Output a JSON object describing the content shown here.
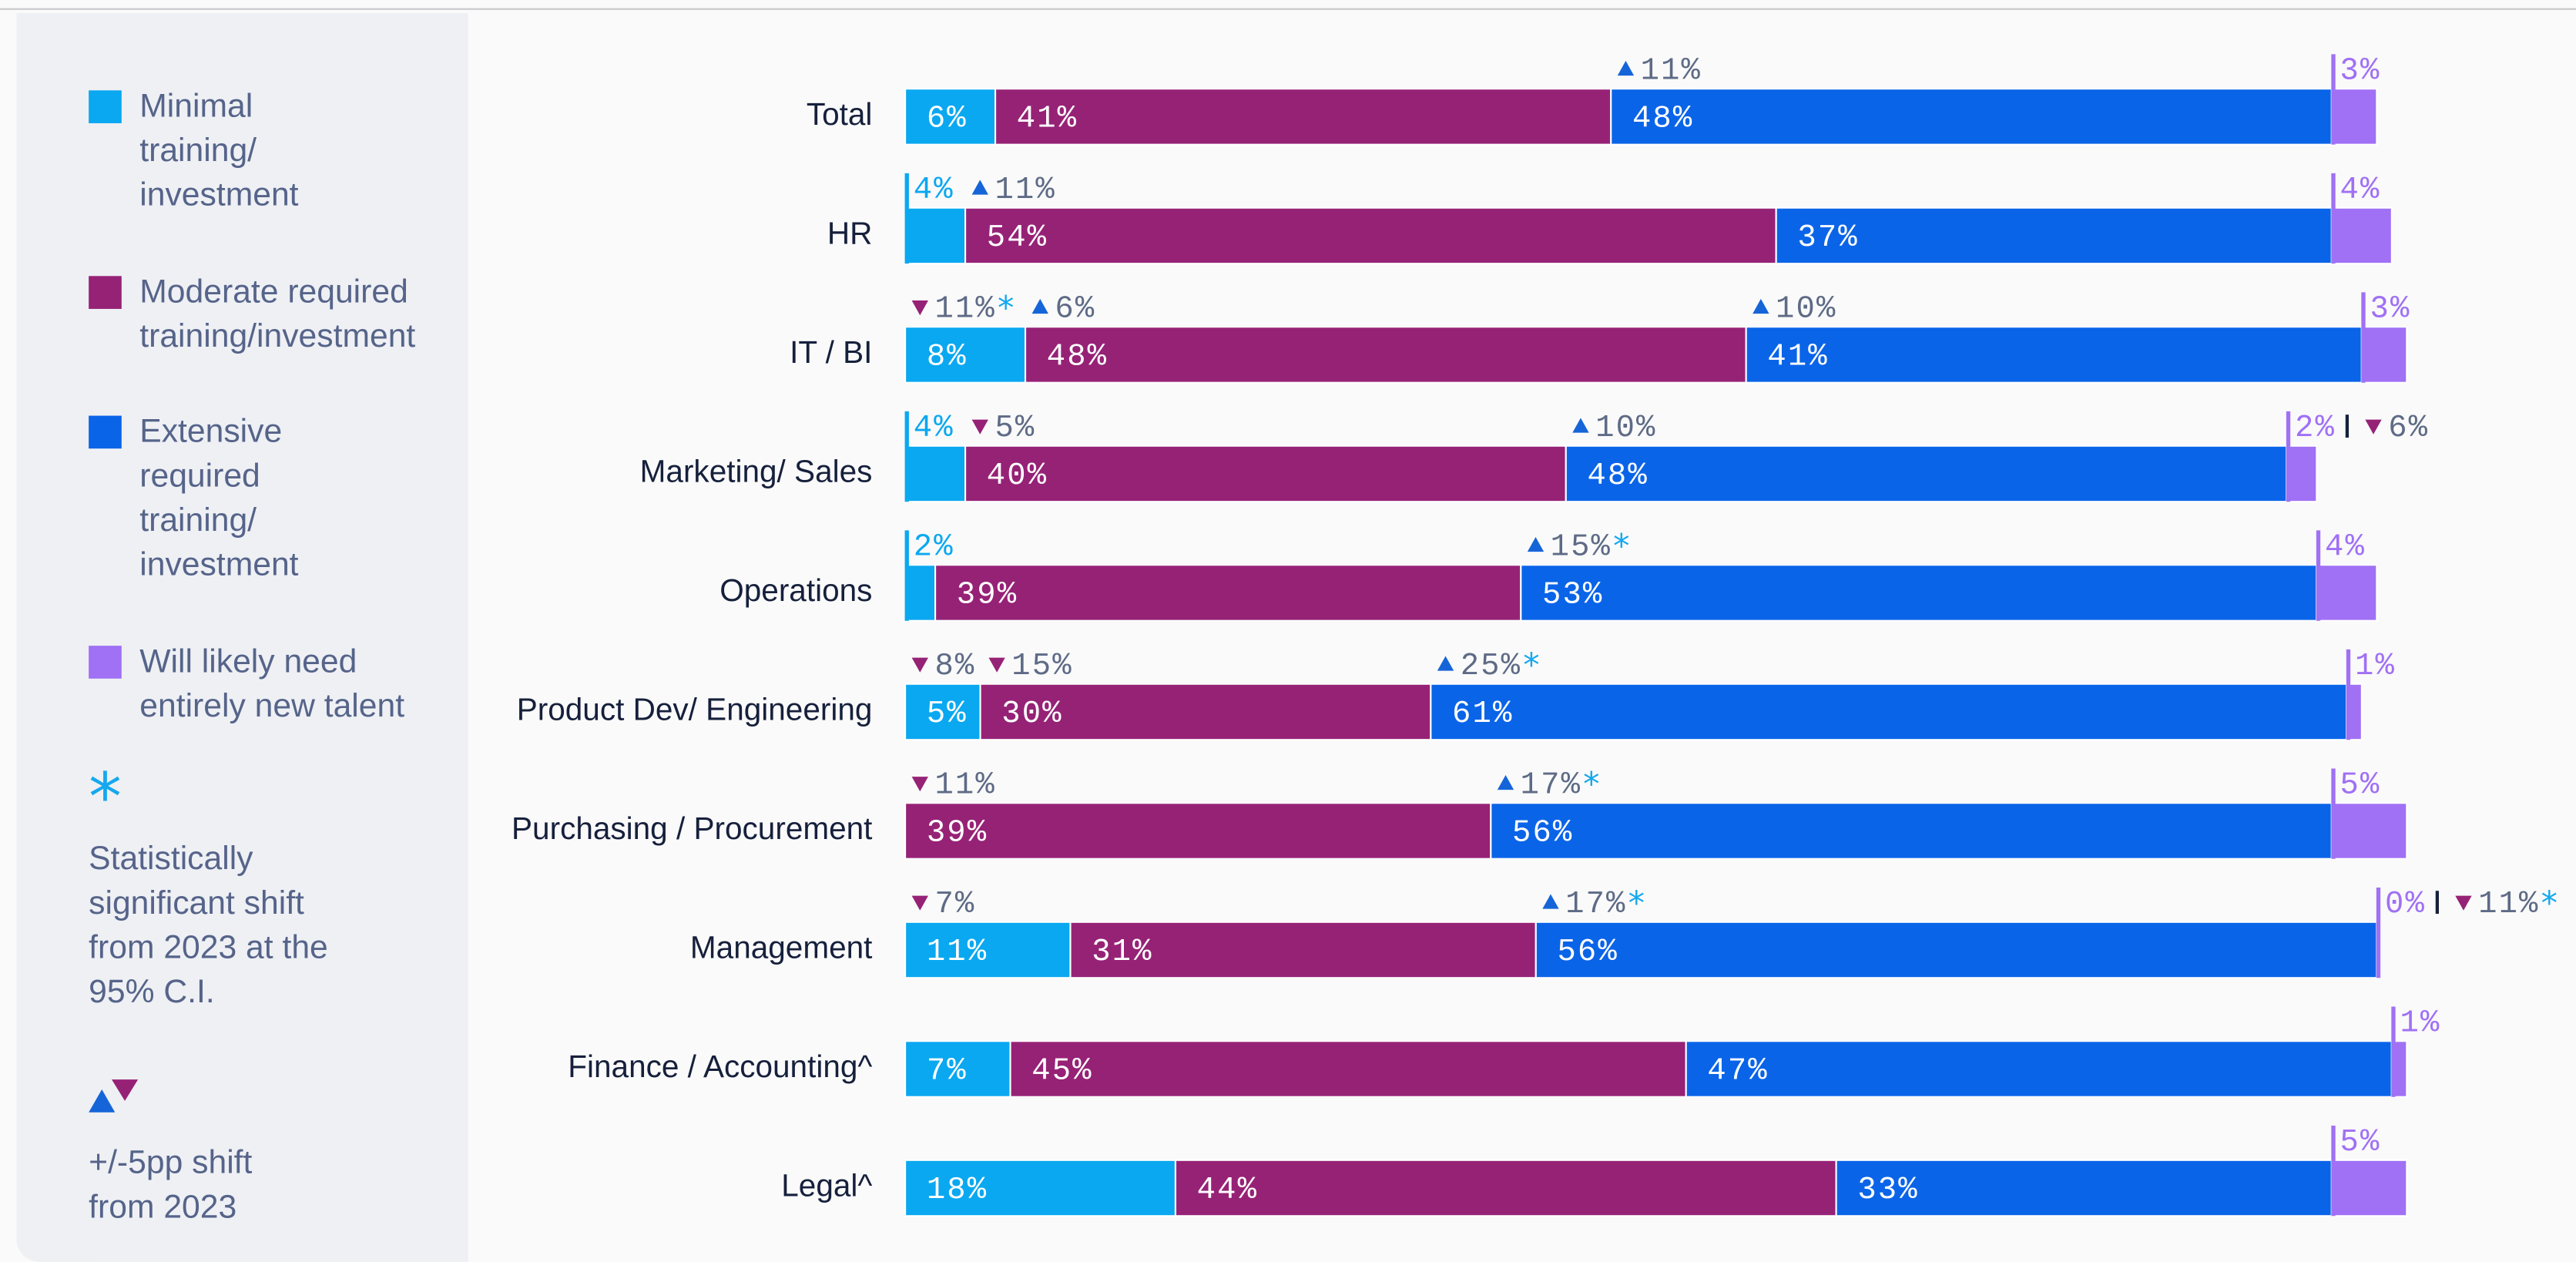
{
  "chart_data": {
    "type": "bar",
    "orientation": "horizontal",
    "stacked": true,
    "categories": [
      "Total",
      "HR",
      "IT / BI",
      "Marketing/ Sales",
      "Operations",
      "Product Dev/ Engineering",
      "Purchasing / Procurement",
      "Management",
      "Finance / Accounting^",
      "Legal^"
    ],
    "xlim": [
      0,
      100
    ],
    "shift_colors": {
      "up": "#1565d8",
      "down": "#962276"
    },
    "series": [
      {
        "name": "Minimal training/ investment",
        "color": "#0aa8f0",
        "values": [
          6,
          4,
          8,
          4,
          2,
          5,
          null,
          11,
          7,
          18
        ],
        "value_labels": [
          "6%",
          "4%",
          "8%",
          "4%",
          "2%",
          "5%",
          null,
          "11%",
          "7%",
          "18%"
        ],
        "shifts": [
          null,
          null,
          {
            "label": "11%",
            "direction": "down",
            "significant": true
          },
          null,
          null,
          {
            "label": "8%",
            "direction": "down",
            "significant": false
          },
          null,
          {
            "label": "7%",
            "direction": "down",
            "significant": false
          },
          null,
          null
        ]
      },
      {
        "name": "Moderate required training/investment",
        "color": "#962276",
        "values": [
          41,
          54,
          48,
          40,
          39,
          30,
          39,
          31,
          45,
          44
        ],
        "value_labels": [
          "41%",
          "54%",
          "48%",
          "40%",
          "39%",
          "30%",
          "39%",
          "31%",
          "45%",
          "44%"
        ],
        "shifts": [
          null,
          {
            "label": "11%",
            "direction": "up",
            "significant": false
          },
          {
            "label": "6%",
            "direction": "up",
            "significant": false
          },
          {
            "label": "5%",
            "direction": "down",
            "significant": false
          },
          null,
          {
            "label": "15%",
            "direction": "down",
            "significant": false
          },
          {
            "label": "11%",
            "direction": "down",
            "significant": false
          },
          null,
          null,
          null
        ]
      },
      {
        "name": "Extensive required training/ investment",
        "color": "#0a64e8",
        "values": [
          48,
          37,
          41,
          48,
          53,
          61,
          56,
          56,
          47,
          33
        ],
        "value_labels": [
          "48%",
          "37%",
          "41%",
          "48%",
          "53%",
          "61%",
          "56%",
          "56%",
          "47%",
          "33%"
        ],
        "shifts": [
          {
            "label": "11%",
            "direction": "up",
            "significant": false
          },
          null,
          {
            "label": "10%",
            "direction": "up",
            "significant": false
          },
          {
            "label": "10%",
            "direction": "up",
            "significant": false
          },
          {
            "label": "15%",
            "direction": "up",
            "significant": true
          },
          {
            "label": "25%",
            "direction": "up",
            "significant": true
          },
          {
            "label": "17%",
            "direction": "up",
            "significant": true
          },
          {
            "label": "17%",
            "direction": "up",
            "significant": true
          },
          null,
          null
        ]
      },
      {
        "name": "Will likely need entirely new talent",
        "color": "#a070f5",
        "values": [
          3,
          4,
          3,
          2,
          4,
          1,
          5,
          0,
          1,
          5
        ],
        "value_labels": [
          "3%",
          "4%",
          "3%",
          "2%",
          "4%",
          "1%",
          "5%",
          "0%",
          "1%",
          "5%"
        ],
        "shifts": [
          null,
          null,
          null,
          {
            "label": "6%",
            "direction": "down",
            "significant": false
          },
          null,
          null,
          null,
          {
            "label": "11%",
            "direction": "down",
            "significant": true
          },
          null,
          null
        ]
      }
    ]
  },
  "legend": {
    "significance_marker": "*",
    "significance_note": "Statistically significant shift from 2023 at the 95% C.I.",
    "shift_note": "+/-5pp shift from 2023"
  }
}
